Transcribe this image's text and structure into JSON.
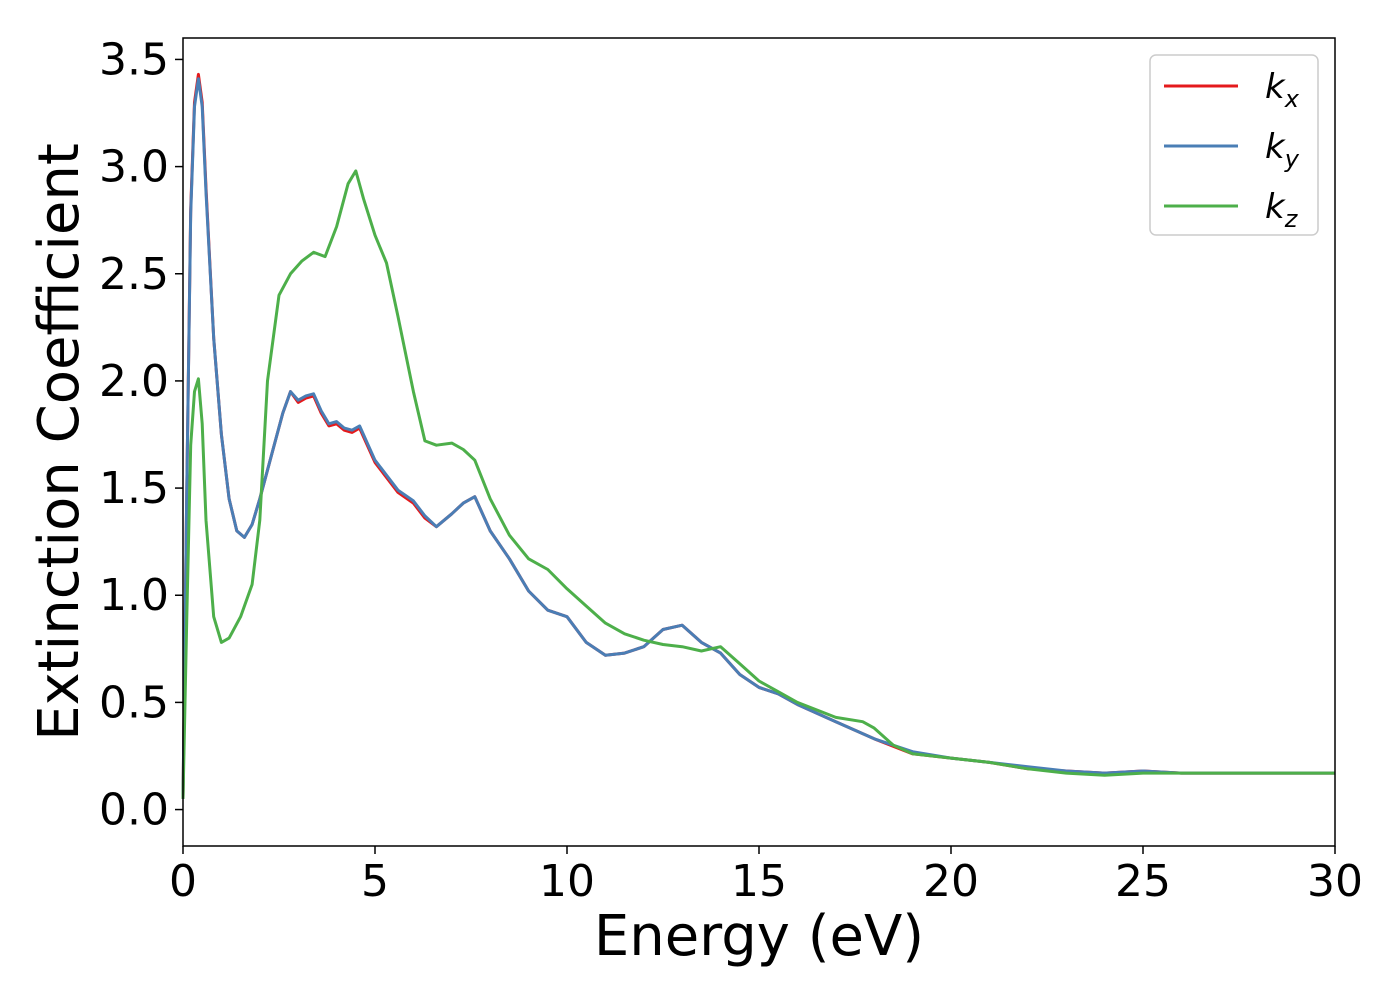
{
  "chart_data": {
    "type": "line",
    "title": "",
    "xlabel": "Energy (eV)",
    "ylabel": "Extinction Coefficient",
    "xlim": [
      0,
      30
    ],
    "ylim": [
      -0.17,
      3.6
    ],
    "xticks": [
      0,
      5,
      10,
      15,
      20,
      25,
      30
    ],
    "xtick_labels": [
      "0",
      "5",
      "10",
      "15",
      "20",
      "25",
      "30"
    ],
    "yticks": [
      0.0,
      0.5,
      1.0,
      1.5,
      2.0,
      2.5,
      3.0,
      3.5
    ],
    "ytick_labels": [
      "0.0",
      "0.5",
      "1.0",
      "1.5",
      "2.0",
      "2.5",
      "3.0",
      "3.5"
    ],
    "grid": false,
    "legend_position": "top-right",
    "series": [
      {
        "name": "k",
        "subscript": "x",
        "color": "#e41a1c",
        "x": [
          0,
          0.1,
          0.2,
          0.3,
          0.4,
          0.5,
          0.6,
          0.8,
          1.0,
          1.2,
          1.4,
          1.6,
          1.8,
          2.0,
          2.3,
          2.6,
          2.8,
          3.0,
          3.2,
          3.4,
          3.6,
          3.8,
          4.0,
          4.2,
          4.4,
          4.6,
          4.8,
          5.0,
          5.3,
          5.6,
          6.0,
          6.3,
          6.6,
          7.0,
          7.3,
          7.6,
          8.0,
          8.5,
          9.0,
          9.5,
          10.0,
          10.5,
          11.0,
          11.5,
          12.0,
          12.5,
          13.0,
          13.5,
          14.0,
          14.5,
          15.0,
          15.5,
          16.0,
          17.0,
          18.0,
          19.0,
          20.0,
          21.0,
          22.0,
          23.0,
          24.0,
          25.0,
          26.0,
          27.0,
          28.0,
          29.0,
          30.0
        ],
        "y": [
          0.05,
          1.5,
          2.8,
          3.3,
          3.43,
          3.3,
          2.9,
          2.2,
          1.75,
          1.45,
          1.3,
          1.27,
          1.33,
          1.45,
          1.65,
          1.85,
          1.95,
          1.9,
          1.92,
          1.93,
          1.85,
          1.79,
          1.8,
          1.77,
          1.76,
          1.78,
          1.7,
          1.62,
          1.55,
          1.48,
          1.43,
          1.36,
          1.32,
          1.38,
          1.43,
          1.46,
          1.3,
          1.17,
          1.02,
          0.93,
          0.9,
          0.78,
          0.72,
          0.73,
          0.76,
          0.84,
          0.86,
          0.78,
          0.73,
          0.63,
          0.57,
          0.54,
          0.49,
          0.41,
          0.33,
          0.26,
          0.24,
          0.22,
          0.19,
          0.18,
          0.17,
          0.18,
          0.17,
          0.17,
          0.17,
          0.17,
          0.17
        ]
      },
      {
        "name": "k",
        "subscript": "y",
        "color": "#4a7eb5",
        "x": [
          0,
          0.1,
          0.2,
          0.3,
          0.4,
          0.5,
          0.6,
          0.8,
          1.0,
          1.2,
          1.4,
          1.6,
          1.8,
          2.0,
          2.3,
          2.6,
          2.8,
          3.0,
          3.2,
          3.4,
          3.6,
          3.8,
          4.0,
          4.2,
          4.4,
          4.6,
          4.8,
          5.0,
          5.3,
          5.6,
          6.0,
          6.3,
          6.6,
          7.0,
          7.3,
          7.6,
          8.0,
          8.5,
          9.0,
          9.5,
          10.0,
          10.5,
          11.0,
          11.5,
          12.0,
          12.5,
          13.0,
          13.5,
          14.0,
          14.5,
          15.0,
          15.5,
          16.0,
          17.0,
          18.0,
          19.0,
          20.0,
          21.0,
          22.0,
          23.0,
          24.0,
          25.0,
          26.0,
          27.0,
          28.0,
          29.0,
          30.0
        ],
        "y": [
          0.05,
          1.5,
          2.78,
          3.28,
          3.41,
          3.28,
          2.88,
          2.2,
          1.75,
          1.45,
          1.3,
          1.27,
          1.33,
          1.45,
          1.65,
          1.85,
          1.95,
          1.91,
          1.93,
          1.94,
          1.86,
          1.8,
          1.81,
          1.78,
          1.77,
          1.79,
          1.71,
          1.63,
          1.56,
          1.49,
          1.44,
          1.37,
          1.32,
          1.38,
          1.43,
          1.46,
          1.3,
          1.17,
          1.02,
          0.93,
          0.9,
          0.78,
          0.72,
          0.73,
          0.76,
          0.84,
          0.86,
          0.78,
          0.73,
          0.63,
          0.57,
          0.54,
          0.49,
          0.41,
          0.33,
          0.27,
          0.24,
          0.22,
          0.2,
          0.18,
          0.17,
          0.18,
          0.17,
          0.17,
          0.17,
          0.17,
          0.17
        ]
      },
      {
        "name": "k",
        "subscript": "z",
        "color": "#4daf4a",
        "x": [
          0,
          0.1,
          0.2,
          0.3,
          0.4,
          0.5,
          0.6,
          0.8,
          1.0,
          1.2,
          1.5,
          1.8,
          2.0,
          2.2,
          2.5,
          2.8,
          3.1,
          3.4,
          3.7,
          4.0,
          4.3,
          4.5,
          4.7,
          5.0,
          5.3,
          5.6,
          6.0,
          6.3,
          6.6,
          7.0,
          7.3,
          7.6,
          8.0,
          8.5,
          9.0,
          9.5,
          10.0,
          10.5,
          11.0,
          11.5,
          12.0,
          12.5,
          13.0,
          13.5,
          14.0,
          14.5,
          15.0,
          15.5,
          16.0,
          17.0,
          17.7,
          18.0,
          18.5,
          19.0,
          20.0,
          21.0,
          22.0,
          23.0,
          24.0,
          25.0,
          26.0,
          27.0,
          28.0,
          29.0,
          30.0
        ],
        "y": [
          0.05,
          0.9,
          1.7,
          1.95,
          2.01,
          1.8,
          1.35,
          0.9,
          0.78,
          0.8,
          0.9,
          1.05,
          1.35,
          2.0,
          2.4,
          2.5,
          2.56,
          2.6,
          2.58,
          2.72,
          2.92,
          2.98,
          2.85,
          2.68,
          2.55,
          2.3,
          1.95,
          1.72,
          1.7,
          1.71,
          1.68,
          1.63,
          1.45,
          1.28,
          1.17,
          1.12,
          1.03,
          0.95,
          0.87,
          0.82,
          0.79,
          0.77,
          0.76,
          0.74,
          0.76,
          0.68,
          0.6,
          0.55,
          0.5,
          0.43,
          0.41,
          0.38,
          0.3,
          0.26,
          0.24,
          0.22,
          0.19,
          0.17,
          0.16,
          0.17,
          0.17,
          0.17,
          0.17,
          0.17,
          0.17
        ]
      }
    ]
  }
}
